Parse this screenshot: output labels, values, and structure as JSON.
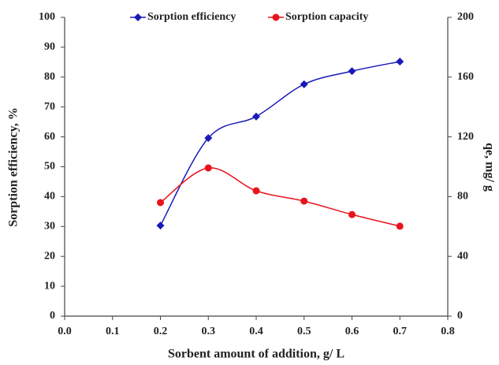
{
  "chart_data": {
    "type": "line",
    "x_label": "Sorbent amount of addition, g/ L",
    "y_label": "Sorption efficiency, %",
    "y2_label": "qe, mg/ g",
    "x": [
      0.2,
      0.3,
      0.4,
      0.5,
      0.6,
      0.7
    ],
    "series": [
      {
        "name": "Sorption efficiency",
        "color": "#1a1ab8",
        "marker": "diamond",
        "values": [
          30.3,
          59.6,
          66.8,
          77.6,
          82,
          85.2
        ]
      },
      {
        "name": "Sorption capacity",
        "color": "#e8141c",
        "marker": "circle",
        "axis": "y2",
        "values": [
          76,
          99.2,
          83.9,
          77,
          68,
          60.2
        ]
      }
    ],
    "xlim": [
      0,
      0.8
    ],
    "xticks": [
      {
        "value": 0,
        "label": "0.0"
      },
      0.1,
      0.2,
      0.3,
      0.4,
      0.5,
      0.6,
      0.7,
      0.8
    ],
    "ylim": [
      0,
      100
    ],
    "yticks": [
      0,
      10,
      20,
      30,
      40,
      50,
      60,
      70,
      80,
      90,
      100
    ],
    "y2lim": [
      0,
      200
    ],
    "y2ticks": [
      0,
      40,
      80,
      120,
      160,
      200
    ],
    "legend": "top"
  }
}
